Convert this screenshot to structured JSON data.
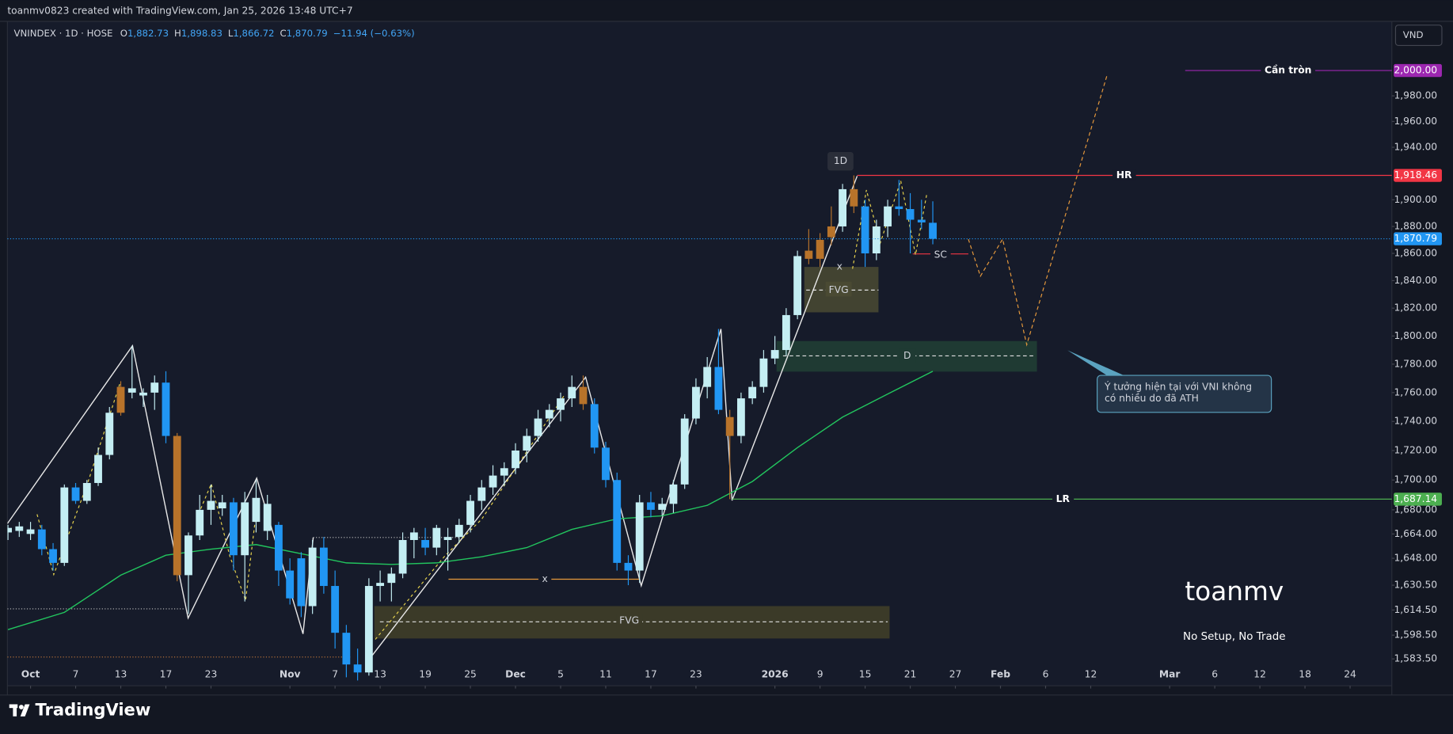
{
  "header": {
    "credit": "toanmv0823 created with TradingView.com, Jan 25, 2026 13:48 UTC+7"
  },
  "chart_data": {
    "type": "candlestick",
    "symbol": "VNINDEX · 1D · HOSE",
    "legend": [
      {
        "key": "O",
        "value": "1,882.73"
      },
      {
        "key": "H",
        "value": "1,898.83"
      },
      {
        "key": "L",
        "value": "1,866.72"
      },
      {
        "key": "C",
        "value": "1,870.79"
      }
    ],
    "change": "−11.94 (−0.63%)",
    "currency": "VND",
    "x": [
      -2,
      -1,
      0,
      1,
      2,
      3,
      4,
      5,
      6,
      7,
      8,
      9,
      10,
      11,
      12,
      13,
      14,
      15,
      16,
      17,
      18,
      19,
      20,
      21,
      22,
      23,
      24,
      25,
      26,
      27,
      28,
      29,
      30,
      31,
      32,
      33,
      34,
      35,
      36,
      37,
      38,
      39,
      40,
      41,
      42,
      43,
      44,
      45,
      46,
      47,
      48,
      49,
      50,
      51,
      52,
      53,
      54,
      55,
      56,
      57,
      58,
      59,
      60,
      61,
      62,
      63,
      64,
      65,
      66,
      67,
      68,
      69,
      70,
      71,
      72,
      73,
      74,
      75,
      76,
      77,
      78,
      79,
      80
    ],
    "open": [
      1665,
      1666,
      1664,
      1667,
      1654,
      1645,
      1695,
      1686,
      1698,
      1717,
      1746,
      1760,
      1758,
      1760,
      1767,
      1730,
      1637,
      1663,
      1680,
      1681,
      1685,
      1650,
      1672,
      1666,
      1670,
      1640,
      1648,
      1617,
      1655,
      1630,
      1600,
      1580,
      1575,
      1630,
      1632,
      1638,
      1660,
      1660,
      1655,
      1660,
      1662,
      1670,
      1686,
      1695,
      1703,
      1708,
      1720,
      1730,
      1742,
      1748,
      1756,
      1764,
      1752,
      1722,
      1700,
      1645,
      1640,
      1685,
      1680,
      1684,
      1697,
      1742,
      1764,
      1778,
      1743,
      1730,
      1756,
      1764,
      1784,
      1790,
      1815,
      1862,
      1856,
      1872,
      1880,
      1908,
      1895,
      1860,
      1880,
      1895,
      1893,
      1885,
      1882.73
    ],
    "high": [
      1670,
      1672,
      1672,
      1670,
      1658,
      1697,
      1698,
      1700,
      1722,
      1750,
      1768,
      1793,
      1763,
      1772,
      1775,
      1732,
      1665,
      1690,
      1697,
      1690,
      1688,
      1692,
      1700,
      1690,
      1672,
      1648,
      1652,
      1660,
      1662,
      1640,
      1605,
      1590,
      1635,
      1640,
      1642,
      1665,
      1668,
      1668,
      1670,
      1668,
      1674,
      1690,
      1700,
      1710,
      1712,
      1725,
      1735,
      1748,
      1752,
      1760,
      1772,
      1772,
      1756,
      1726,
      1705,
      1650,
      1690,
      1692,
      1688,
      1700,
      1745,
      1770,
      1785,
      1805,
      1748,
      1760,
      1768,
      1790,
      1800,
      1820,
      1862,
      1878,
      1875,
      1895,
      1912,
      1918.46,
      1900,
      1885,
      1900,
      1915,
      1905,
      1900,
      1898.83
    ],
    "low": [
      1660,
      1662,
      1660,
      1650,
      1640,
      1643,
      1684,
      1684,
      1696,
      1714,
      1744,
      1756,
      1750,
      1748,
      1725,
      1633,
      1612,
      1660,
      1670,
      1676,
      1640,
      1620,
      1665,
      1660,
      1630,
      1618,
      1610,
      1612,
      1625,
      1590,
      1572,
      1570,
      1573,
      1620,
      1620,
      1635,
      1648,
      1650,
      1650,
      1640,
      1658,
      1665,
      1680,
      1690,
      1696,
      1704,
      1712,
      1726,
      1736,
      1740,
      1750,
      1748,
      1718,
      1695,
      1640,
      1630.5,
      1632,
      1675,
      1676,
      1678,
      1694,
      1738,
      1756,
      1745,
      1687.14,
      1725,
      1752,
      1760,
      1780,
      1786,
      1812,
      1852,
      1850,
      1866,
      1876,
      1890,
      1850,
      1855,
      1872,
      1888,
      1860,
      1878,
      1866.72
    ],
    "close": [
      1668,
      1669,
      1667,
      1654,
      1645,
      1695,
      1686,
      1698,
      1717,
      1746,
      1764,
      1763,
      1760,
      1767,
      1730,
      1637,
      1663,
      1680,
      1686,
      1685,
      1650,
      1685,
      1688,
      1684,
      1640,
      1622,
      1617,
      1655,
      1630,
      1600,
      1580,
      1575,
      1630,
      1632,
      1638,
      1660,
      1665,
      1655,
      1668,
      1662,
      1670,
      1686,
      1695,
      1703,
      1708,
      1720,
      1730,
      1742,
      1748,
      1756,
      1764,
      1752,
      1722,
      1700,
      1645,
      1640,
      1685,
      1680,
      1684,
      1697,
      1742,
      1764,
      1778,
      1748,
      1730,
      1756,
      1764,
      1784,
      1790,
      1815,
      1858,
      1856,
      1870,
      1880,
      1908,
      1895,
      1860,
      1880,
      1895,
      1893,
      1885,
      1883,
      1870.79
    ],
    "up_color": "#c4eef3",
    "down_color": "#2196f3",
    "marked_color": "#b8732a",
    "marked": [
      8,
      13,
      49,
      62,
      69,
      70,
      71,
      73
    ],
    "xlim": [
      -2.05,
      120.7
    ],
    "xticks": [
      {
        "value": 0,
        "label": "Oct"
      },
      {
        "value": 4,
        "label": "7"
      },
      {
        "value": 8,
        "label": "13"
      },
      {
        "value": 12,
        "label": "17"
      },
      {
        "value": 16,
        "label": "23"
      },
      {
        "value": 23,
        "label": "Nov"
      },
      {
        "value": 27,
        "label": "7"
      },
      {
        "value": 31,
        "label": "13"
      },
      {
        "value": 35,
        "label": "19"
      },
      {
        "value": 39,
        "label": "25"
      },
      {
        "value": 43,
        "label": "Dec"
      },
      {
        "value": 47,
        "label": "5"
      },
      {
        "value": 51,
        "label": "11"
      },
      {
        "value": 55,
        "label": "17"
      },
      {
        "value": 59,
        "label": "23"
      },
      {
        "value": 66,
        "label": "2026"
      },
      {
        "value": 70,
        "label": "9"
      },
      {
        "value": 74,
        "label": "15"
      },
      {
        "value": 78,
        "label": "21"
      },
      {
        "value": 82,
        "label": "27"
      },
      {
        "value": 86,
        "label": "Feb"
      },
      {
        "value": 90,
        "label": "6"
      },
      {
        "value": 94,
        "label": "12"
      },
      {
        "value": 101,
        "label": "Mar"
      },
      {
        "value": 105,
        "label": "6"
      },
      {
        "value": 109,
        "label": "12"
      },
      {
        "value": 113,
        "label": "18"
      },
      {
        "value": 117,
        "label": "24"
      }
    ],
    "ylim": [
      1566.7,
      2037.9
    ],
    "log_scale": true,
    "grid": false,
    "yticks": [
      {
        "value": 1980,
        "label": "1,980.00"
      },
      {
        "value": 1960,
        "label": "1,960.00"
      },
      {
        "value": 1940,
        "label": "1,940.00"
      },
      {
        "value": 1900,
        "label": "1,900.00"
      },
      {
        "value": 1880,
        "label": "1,880.00"
      },
      {
        "value": 1860,
        "label": "1,860.00"
      },
      {
        "value": 1840,
        "label": "1,840.00"
      },
      {
        "value": 1820,
        "label": "1,820.00"
      },
      {
        "value": 1800,
        "label": "1,800.00"
      },
      {
        "value": 1780,
        "label": "1,780.00"
      },
      {
        "value": 1760,
        "label": "1,760.00"
      },
      {
        "value": 1740,
        "label": "1,740.00"
      },
      {
        "value": 1720,
        "label": "1,720.00"
      },
      {
        "value": 1700,
        "label": "1,700.00"
      },
      {
        "value": 1680,
        "label": "1,680.00"
      },
      {
        "value": 1664,
        "label": "1,664.00"
      },
      {
        "value": 1648,
        "label": "1,648.00"
      },
      {
        "value": 1630.5,
        "label": "1,630.50"
      },
      {
        "value": 1614.5,
        "label": "1,614.50"
      },
      {
        "value": 1598.5,
        "label": "1,598.50"
      },
      {
        "value": 1583.5,
        "label": "1,583.50"
      }
    ],
    "ma": {
      "color": "#22c55e",
      "x": [
        -2,
        3,
        8,
        12,
        16,
        20,
        24,
        28,
        32,
        36,
        40,
        44,
        48,
        52,
        56,
        60,
        64,
        68,
        72,
        76,
        80
      ],
      "values": [
        1602,
        1613,
        1637,
        1650,
        1654,
        1657,
        1651,
        1645,
        1644,
        1645,
        1649,
        1655,
        1667,
        1674,
        1676,
        1683,
        1699,
        1722,
        1743,
        1759,
        1775
      ]
    },
    "levels": [
      {
        "name": "Cần tròn",
        "value": 2000,
        "label": "2,000.00",
        "color": "#9c27b0"
      },
      {
        "name": "HR",
        "value": 1918.46,
        "label": "1,918.46",
        "color": "#f23645"
      },
      {
        "name": "LR",
        "value": 1687.14,
        "label": "1,687.14",
        "color": "#4caf50"
      }
    ],
    "last_price": {
      "value": 1870.79,
      "label": "1,870.79",
      "color": "#2196f3"
    }
  },
  "drawings": {
    "fvg_top": "FVG",
    "d_zone": "D",
    "fvg_bottom": "FVG",
    "x_top": "x",
    "x_bottom": "x",
    "sc": "SC",
    "timeframe_tag": "1D",
    "note": [
      "Ý tưởng hiện tại với VNI không",
      "có nhiều do đã ATH"
    ],
    "watermark": "toanmv",
    "footer_note": "No Setup, No Trade"
  },
  "footer": {
    "brand": "TradingView"
  }
}
